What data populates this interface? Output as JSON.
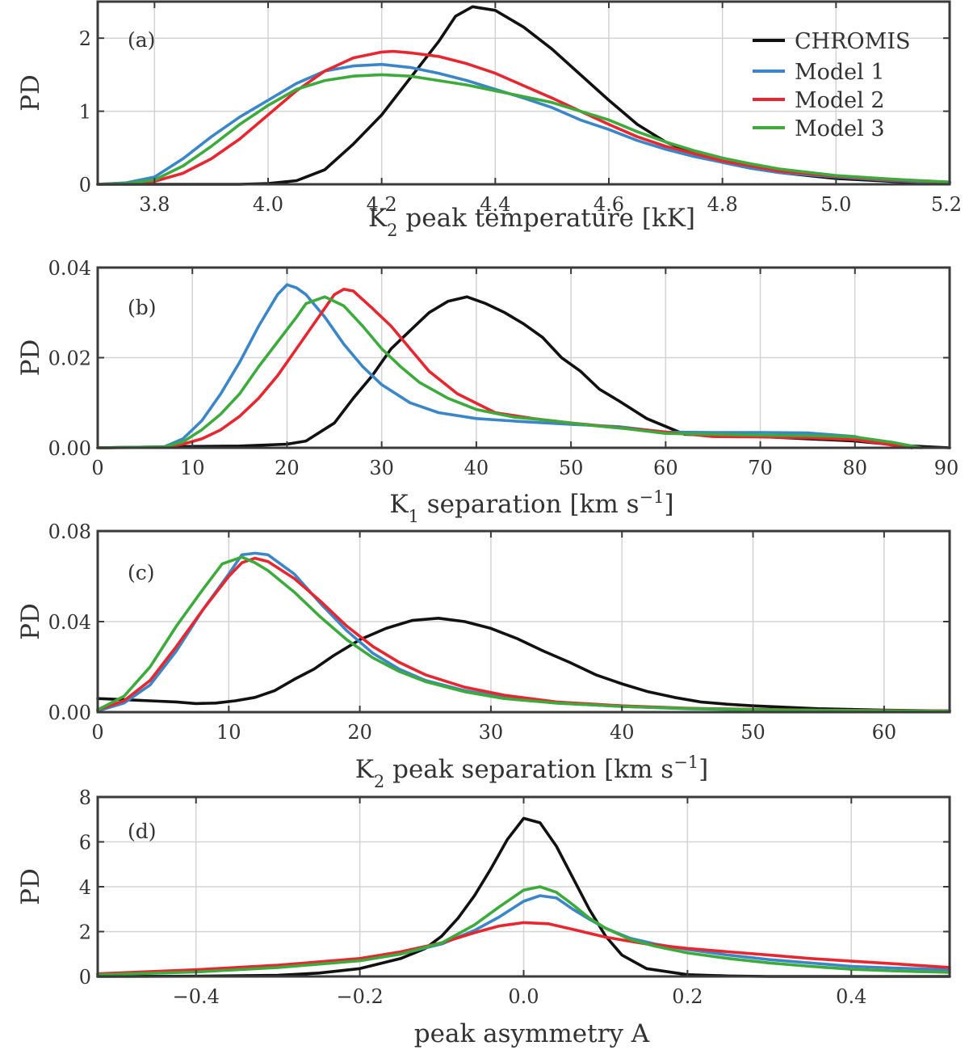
{
  "colors": {
    "CHROMIS": "#111111",
    "Model 1": "#3a86c8",
    "Model 2": "#e8262f",
    "Model 3": "#3cab3c"
  },
  "chart_data": [
    {
      "type": "line",
      "panel": "(a)",
      "xlabel": "K",
      "xlabel_sub": "2",
      "xlabel_rest": " peak temperature [kK]",
      "ylabel": "PD",
      "xlim": [
        3.7,
        5.2
      ],
      "ylim": [
        0,
        2.5
      ],
      "xticks": [
        3.8,
        4.0,
        4.2,
        4.4,
        4.6,
        4.8,
        5.0,
        5.2
      ],
      "xtick_labels": [
        "3.8",
        "4.0",
        "4.2",
        "4.4",
        "4.6",
        "4.8",
        "5.0",
        "5.2"
      ],
      "yticks": [
        0,
        1,
        2
      ],
      "ytick_labels": [
        "0",
        "1",
        "2"
      ],
      "legend": [
        "CHROMIS",
        "Model 1",
        "Model 2",
        "Model 3"
      ],
      "series": [
        {
          "name": "CHROMIS",
          "x": [
            3.7,
            3.95,
            4.0,
            4.05,
            4.1,
            4.15,
            4.2,
            4.25,
            4.3,
            4.33,
            4.36,
            4.4,
            4.45,
            4.5,
            4.55,
            4.6,
            4.65,
            4.7,
            4.75,
            4.8,
            4.85,
            4.9,
            5.0,
            5.1,
            5.2
          ],
          "y": [
            0,
            0,
            0.01,
            0.05,
            0.2,
            0.55,
            0.95,
            1.45,
            1.95,
            2.3,
            2.43,
            2.38,
            2.15,
            1.85,
            1.5,
            1.15,
            0.82,
            0.58,
            0.42,
            0.3,
            0.22,
            0.16,
            0.08,
            0.04,
            0.02
          ]
        },
        {
          "name": "Model 1",
          "x": [
            3.7,
            3.75,
            3.8,
            3.85,
            3.9,
            3.95,
            4.0,
            4.05,
            4.1,
            4.15,
            4.2,
            4.25,
            4.3,
            4.35,
            4.4,
            4.45,
            4.5,
            4.55,
            4.6,
            4.65,
            4.7,
            4.75,
            4.8,
            4.85,
            4.9,
            5.0,
            5.1,
            5.2
          ],
          "y": [
            0,
            0.02,
            0.1,
            0.35,
            0.65,
            0.92,
            1.15,
            1.38,
            1.55,
            1.62,
            1.64,
            1.6,
            1.52,
            1.42,
            1.3,
            1.18,
            1.05,
            0.88,
            0.75,
            0.6,
            0.48,
            0.38,
            0.3,
            0.22,
            0.16,
            0.1,
            0.05,
            0.02
          ]
        },
        {
          "name": "Model 2",
          "x": [
            3.7,
            3.75,
            3.8,
            3.85,
            3.9,
            3.95,
            4.0,
            4.05,
            4.1,
            4.15,
            4.2,
            4.22,
            4.25,
            4.3,
            4.35,
            4.4,
            4.45,
            4.5,
            4.55,
            4.6,
            4.65,
            4.7,
            4.75,
            4.8,
            4.85,
            4.9,
            5.0,
            5.1,
            5.2
          ],
          "y": [
            0,
            0.01,
            0.04,
            0.15,
            0.35,
            0.62,
            0.95,
            1.28,
            1.55,
            1.73,
            1.81,
            1.82,
            1.8,
            1.75,
            1.65,
            1.52,
            1.35,
            1.18,
            1.0,
            0.82,
            0.65,
            0.52,
            0.42,
            0.32,
            0.25,
            0.18,
            0.11,
            0.06,
            0.03
          ]
        },
        {
          "name": "Model 3",
          "x": [
            3.7,
            3.75,
            3.8,
            3.85,
            3.9,
            3.95,
            4.0,
            4.05,
            4.1,
            4.15,
            4.2,
            4.25,
            4.3,
            4.35,
            4.4,
            4.45,
            4.5,
            4.55,
            4.6,
            4.65,
            4.7,
            4.75,
            4.8,
            4.85,
            4.9,
            5.0,
            5.1,
            5.2
          ],
          "y": [
            0,
            0.01,
            0.06,
            0.25,
            0.52,
            0.82,
            1.08,
            1.3,
            1.42,
            1.48,
            1.5,
            1.48,
            1.42,
            1.36,
            1.28,
            1.2,
            1.12,
            1.0,
            0.88,
            0.72,
            0.58,
            0.46,
            0.36,
            0.28,
            0.21,
            0.12,
            0.07,
            0.03
          ]
        }
      ]
    },
    {
      "type": "line",
      "panel": "(b)",
      "xlabel": "K",
      "xlabel_sub": "1",
      "xlabel_rest": " separation [km s",
      "xlabel_sup": "−1",
      "xlabel_end": "]",
      "ylabel": "PD",
      "xlim": [
        0,
        90
      ],
      "ylim": [
        0,
        0.04
      ],
      "xticks": [
        0,
        10,
        20,
        30,
        40,
        50,
        60,
        70,
        80,
        90
      ],
      "xtick_labels": [
        "0",
        "10",
        "20",
        "30",
        "40",
        "50",
        "60",
        "70",
        "80",
        "90"
      ],
      "yticks": [
        0,
        0.02,
        0.04
      ],
      "ytick_labels": [
        "0.00",
        "0.02",
        "0.04"
      ],
      "series": [
        {
          "name": "CHROMIS",
          "x": [
            0,
            10,
            15,
            20,
            22,
            25,
            27,
            29,
            31,
            33,
            35,
            37,
            39,
            41,
            43,
            45,
            47,
            49,
            51,
            53,
            55,
            58,
            62,
            70,
            80,
            85,
            90
          ],
          "y": [
            0,
            0.0003,
            0.0004,
            0.0008,
            0.0015,
            0.0055,
            0.011,
            0.016,
            0.022,
            0.026,
            0.03,
            0.0325,
            0.0335,
            0.032,
            0.03,
            0.0275,
            0.0245,
            0.02,
            0.017,
            0.013,
            0.0105,
            0.0065,
            0.003,
            0.0025,
            0.0015,
            0.0005,
            0
          ]
        },
        {
          "name": "Model 1",
          "x": [
            0,
            7,
            9,
            11,
            13,
            15,
            17,
            19,
            20,
            21,
            22,
            24,
            26,
            28,
            30,
            33,
            36,
            40,
            45,
            50,
            55,
            60,
            65,
            70,
            75,
            80,
            83,
            86
          ],
          "y": [
            0,
            0.0002,
            0.002,
            0.006,
            0.012,
            0.019,
            0.027,
            0.034,
            0.0362,
            0.0355,
            0.034,
            0.029,
            0.023,
            0.018,
            0.014,
            0.01,
            0.0078,
            0.0065,
            0.0058,
            0.0052,
            0.0047,
            0.0035,
            0.0034,
            0.0034,
            0.0033,
            0.0025,
            0.001,
            0
          ]
        },
        {
          "name": "Model 2",
          "x": [
            0,
            7,
            9,
            11,
            13,
            15,
            17,
            19,
            21,
            23,
            25,
            26,
            27,
            29,
            31,
            33,
            35,
            38,
            42,
            46,
            50,
            55,
            60,
            65,
            70,
            75,
            80,
            84,
            86
          ],
          "y": [
            0,
            0.0001,
            0.0008,
            0.002,
            0.004,
            0.007,
            0.011,
            0.016,
            0.022,
            0.028,
            0.034,
            0.0352,
            0.0348,
            0.031,
            0.027,
            0.022,
            0.017,
            0.012,
            0.0078,
            0.0065,
            0.0055,
            0.0045,
            0.0035,
            0.0025,
            0.0024,
            0.0022,
            0.0018,
            0.0006,
            0
          ]
        },
        {
          "name": "Model 3",
          "x": [
            0,
            7,
            9,
            11,
            13,
            15,
            17,
            19,
            21,
            22,
            24,
            26,
            28,
            30,
            32,
            34,
            37,
            40,
            44,
            48,
            52,
            56,
            60,
            65,
            70,
            75,
            80,
            84,
            87
          ],
          "y": [
            0,
            0.0002,
            0.0013,
            0.004,
            0.0075,
            0.012,
            0.018,
            0.0235,
            0.029,
            0.032,
            0.0335,
            0.0315,
            0.027,
            0.022,
            0.018,
            0.0145,
            0.011,
            0.0085,
            0.0068,
            0.006,
            0.005,
            0.0042,
            0.0032,
            0.003,
            0.0028,
            0.0027,
            0.0024,
            0.0012,
            0
          ]
        }
      ]
    },
    {
      "type": "line",
      "panel": "(c)",
      "xlabel": "K",
      "xlabel_sub": "2",
      "xlabel_rest": " peak separation [km s",
      "xlabel_sup": "−1",
      "xlabel_end": "]",
      "ylabel": "PD",
      "xlim": [
        0,
        65
      ],
      "ylim": [
        0,
        0.08
      ],
      "xticks": [
        0,
        10,
        20,
        30,
        40,
        50,
        60
      ],
      "xtick_labels": [
        "0",
        "10",
        "20",
        "30",
        "40",
        "50",
        "60"
      ],
      "yticks": [
        0,
        0.04,
        0.08
      ],
      "ytick_labels": [
        "0.00",
        "0.04",
        "0.08"
      ],
      "series": [
        {
          "name": "CHROMIS",
          "x": [
            0,
            2,
            4,
            6,
            7.5,
            9,
            10.5,
            12,
            13.5,
            15,
            16.5,
            18,
            20,
            22,
            24,
            26,
            28,
            30,
            32,
            34,
            36,
            38,
            40,
            42,
            44,
            46,
            48,
            50,
            55,
            60,
            65
          ],
          "y": [
            0.006,
            0.0055,
            0.005,
            0.0045,
            0.0038,
            0.004,
            0.005,
            0.0065,
            0.0095,
            0.0145,
            0.019,
            0.025,
            0.032,
            0.037,
            0.0405,
            0.0415,
            0.04,
            0.037,
            0.0325,
            0.027,
            0.022,
            0.0165,
            0.0125,
            0.009,
            0.0065,
            0.0045,
            0.0035,
            0.0028,
            0.0015,
            0.0009,
            0.0005
          ]
        },
        {
          "name": "Model 1",
          "x": [
            0,
            2,
            4,
            6,
            8,
            10,
            11,
            12,
            13,
            15,
            17,
            19,
            21,
            23,
            25,
            28,
            31,
            35,
            40,
            45,
            50,
            55,
            60,
            65
          ],
          "y": [
            0.0005,
            0.004,
            0.012,
            0.027,
            0.045,
            0.061,
            0.0695,
            0.0702,
            0.0695,
            0.061,
            0.048,
            0.036,
            0.026,
            0.019,
            0.014,
            0.0095,
            0.0065,
            0.004,
            0.0025,
            0.0015,
            0.001,
            0.0008,
            0.0006,
            0.0005
          ]
        },
        {
          "name": "Model 2",
          "x": [
            0,
            2,
            4,
            6,
            8,
            10,
            11,
            12,
            13,
            15,
            17,
            19,
            21,
            23,
            25,
            28,
            31,
            35,
            40,
            45,
            50,
            55,
            60,
            65
          ],
          "y": [
            0.001,
            0.005,
            0.014,
            0.029,
            0.045,
            0.06,
            0.066,
            0.068,
            0.0665,
            0.059,
            0.049,
            0.038,
            0.029,
            0.022,
            0.0165,
            0.011,
            0.0075,
            0.0045,
            0.0028,
            0.0017,
            0.0012,
            0.0009,
            0.0007,
            0.0005
          ]
        },
        {
          "name": "Model 3",
          "x": [
            0,
            2,
            4,
            6,
            8,
            9.5,
            11,
            12,
            13,
            15,
            17,
            19,
            21,
            23,
            25,
            28,
            31,
            35,
            40,
            45,
            50,
            55,
            60,
            65
          ],
          "y": [
            0.001,
            0.007,
            0.02,
            0.038,
            0.054,
            0.0655,
            0.0685,
            0.066,
            0.0625,
            0.053,
            0.042,
            0.032,
            0.024,
            0.018,
            0.0135,
            0.009,
            0.006,
            0.004,
            0.0025,
            0.0016,
            0.0011,
            0.0008,
            0.0006,
            0.0004
          ]
        }
      ]
    },
    {
      "type": "line",
      "panel": "(d)",
      "xlabel": "peak asymmetry A",
      "ylabel": "PD",
      "xlim": [
        -0.52,
        0.52
      ],
      "ylim": [
        0,
        8
      ],
      "xticks": [
        -0.4,
        -0.2,
        0.0,
        0.2,
        0.4
      ],
      "xtick_labels": [
        "−0.4",
        "−0.2",
        "0.0",
        "0.2",
        "0.4"
      ],
      "yticks": [
        0,
        2,
        4,
        6,
        8
      ],
      "ytick_labels": [
        "0",
        "2",
        "4",
        "6",
        "8"
      ],
      "series": [
        {
          "name": "CHROMIS",
          "x": [
            -0.52,
            -0.4,
            -0.3,
            -0.25,
            -0.2,
            -0.15,
            -0.12,
            -0.1,
            -0.08,
            -0.06,
            -0.04,
            -0.02,
            0,
            0.02,
            0.04,
            0.06,
            0.08,
            0.1,
            0.12,
            0.15,
            0.2,
            0.25,
            0.3,
            0.4,
            0.52
          ],
          "y": [
            0,
            0.01,
            0.05,
            0.15,
            0.35,
            0.8,
            1.25,
            1.8,
            2.6,
            3.6,
            4.8,
            6.1,
            7.05,
            6.85,
            5.8,
            4.4,
            3.0,
            1.8,
            0.95,
            0.35,
            0.08,
            0.02,
            0,
            0,
            0
          ]
        },
        {
          "name": "Model 1",
          "x": [
            -0.52,
            -0.4,
            -0.3,
            -0.2,
            -0.15,
            -0.1,
            -0.06,
            -0.03,
            0,
            0.02,
            0.04,
            0.06,
            0.08,
            0.1,
            0.13,
            0.16,
            0.2,
            0.25,
            0.3,
            0.35,
            0.4,
            0.45,
            0.52
          ],
          "y": [
            0.1,
            0.25,
            0.45,
            0.75,
            1.0,
            1.45,
            2.05,
            2.65,
            3.35,
            3.6,
            3.5,
            3.0,
            2.55,
            2.15,
            1.7,
            1.45,
            1.2,
            0.95,
            0.75,
            0.6,
            0.45,
            0.38,
            0.3
          ]
        },
        {
          "name": "Model 2",
          "x": [
            -0.52,
            -0.4,
            -0.3,
            -0.2,
            -0.15,
            -0.1,
            -0.06,
            -0.03,
            0,
            0.03,
            0.06,
            0.1,
            0.15,
            0.2,
            0.25,
            0.3,
            0.35,
            0.4,
            0.45,
            0.52
          ],
          "y": [
            0.12,
            0.3,
            0.5,
            0.8,
            1.1,
            1.5,
            1.95,
            2.25,
            2.4,
            2.35,
            2.1,
            1.75,
            1.45,
            1.25,
            1.1,
            0.95,
            0.8,
            0.68,
            0.57,
            0.4
          ]
        },
        {
          "name": "Model 3",
          "x": [
            -0.52,
            -0.4,
            -0.3,
            -0.2,
            -0.15,
            -0.1,
            -0.06,
            -0.03,
            0,
            0.02,
            0.04,
            0.06,
            0.08,
            0.1,
            0.13,
            0.16,
            0.2,
            0.25,
            0.3,
            0.35,
            0.4,
            0.45,
            0.52
          ],
          "y": [
            0.08,
            0.2,
            0.4,
            0.7,
            1.0,
            1.5,
            2.3,
            3.1,
            3.85,
            4.0,
            3.75,
            3.2,
            2.6,
            2.15,
            1.65,
            1.35,
            1.05,
            0.8,
            0.6,
            0.45,
            0.32,
            0.25,
            0.18
          ]
        }
      ]
    }
  ]
}
